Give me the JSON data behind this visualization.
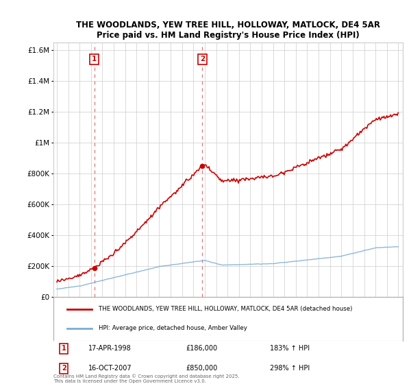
{
  "title": "THE WOODLANDS, YEW TREE HILL, HOLLOWAY, MATLOCK, DE4 5AR",
  "subtitle": "Price paid vs. HM Land Registry's House Price Index (HPI)",
  "legend_label_red": "THE WOODLANDS, YEW TREE HILL, HOLLOWAY, MATLOCK, DE4 5AR (detached house)",
  "legend_label_blue": "HPI: Average price, detached house, Amber Valley",
  "footnote": "Contains HM Land Registry data © Crown copyright and database right 2025.\nThis data is licensed under the Open Government Licence v3.0.",
  "annotation1_date": "17-APR-1998",
  "annotation1_price": "£186,000",
  "annotation1_hpi": "183% ↑ HPI",
  "annotation2_date": "16-OCT-2007",
  "annotation2_price": "£850,000",
  "annotation2_hpi": "298% ↑ HPI",
  "red_color": "#cc0000",
  "blue_color": "#7aadd4",
  "dashed_red": "#dd6666",
  "background": "#ffffff",
  "grid_color": "#cccccc",
  "sale1_year": 1998.29,
  "sale1_price": 186000,
  "sale2_year": 2007.79,
  "sale2_price": 850000,
  "ylim_max": 1650000,
  "ylim_min": 0,
  "xlim_min": 1994.7,
  "xlim_max": 2025.4
}
